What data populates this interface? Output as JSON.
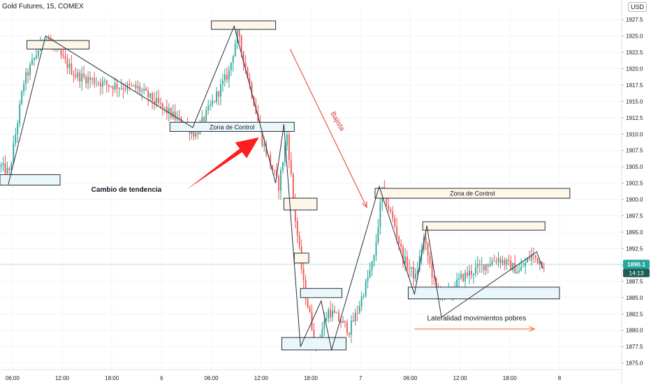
{
  "header": {
    "symbol": "Gold Futures, 15, COMEX",
    "currency": "USD"
  },
  "colors": {
    "up": "#26a69a",
    "down": "#ef5350",
    "zigzag": "#2a2e39",
    "box_border": "#2a2e39",
    "box_fill_beige": "#fdf6e9",
    "box_fill_blue": "#e9f7fb",
    "red_arrow": "#ff1e1e",
    "orange_arrow": "#f57c28",
    "price_line": "#26a69a",
    "price_tag_bg": "#26a69a",
    "time_tag_bg": "#1b5e55"
  },
  "chart_data": {
    "type": "candlestick",
    "title": "",
    "y_axis": {
      "side": "right",
      "range": [
        1874.0,
        1929.0
      ],
      "ticks": [
        "1875.0",
        "1877.5",
        "1880.0",
        "1882.5",
        "1885.0",
        "1887.5",
        "1890.0",
        "1892.5",
        "1895.0",
        "1897.5",
        "1900.0",
        "1902.5",
        "1905.0",
        "1907.5",
        "1910.0",
        "1912.5",
        "1915.0",
        "1917.5",
        "1920.0",
        "1922.5",
        "1925.0",
        "1927.5"
      ]
    },
    "x_axis": {
      "range": [
        0,
        300
      ],
      "ticks": [
        {
          "t": 6,
          "label": "06:00"
        },
        {
          "t": 30,
          "label": "12:00"
        },
        {
          "t": 54,
          "label": "18:00"
        },
        {
          "t": 78,
          "label": "6"
        },
        {
          "t": 102,
          "label": "06:00"
        },
        {
          "t": 126,
          "label": "12:00"
        },
        {
          "t": 150,
          "label": "18:00"
        },
        {
          "t": 174,
          "label": "7"
        },
        {
          "t": 198,
          "label": "06:00"
        },
        {
          "t": 222,
          "label": "12:00"
        },
        {
          "t": 246,
          "label": "18:00"
        },
        {
          "t": 270,
          "label": "8"
        }
      ]
    },
    "last_price": {
      "value": 1890.1,
      "label": "1890.1",
      "countdown": "14:13"
    },
    "candle_path": [
      [
        0,
        1905.0
      ],
      [
        4,
        1904.0
      ],
      [
        11,
        1918.0
      ],
      [
        21,
        1925.0
      ],
      [
        36,
        1919.0
      ],
      [
        52,
        1917.5
      ],
      [
        66,
        1917.0
      ],
      [
        82,
        1913.0
      ],
      [
        94,
        1910.0
      ],
      [
        110,
        1919.5
      ],
      [
        114,
        1925.5
      ],
      [
        122,
        1915.0
      ],
      [
        126,
        1909.0
      ],
      [
        134,
        1902.0
      ],
      [
        138,
        1910.0
      ],
      [
        142,
        1897.0
      ],
      [
        146,
        1887.0
      ],
      [
        152,
        1877.5
      ],
      [
        158,
        1883.0
      ],
      [
        162,
        1882.0
      ],
      [
        168,
        1880.0
      ],
      [
        172,
        1883.0
      ],
      [
        176,
        1887.0
      ],
      [
        180,
        1891.0
      ],
      [
        184,
        1901.5
      ],
      [
        190,
        1896.0
      ],
      [
        194,
        1891.0
      ],
      [
        200,
        1888.0
      ],
      [
        204,
        1894.0
      ],
      [
        210,
        1886.0
      ],
      [
        216,
        1885.5
      ],
      [
        222,
        1888.0
      ],
      [
        230,
        1889.5
      ],
      [
        240,
        1891.0
      ],
      [
        250,
        1889.0
      ],
      [
        256,
        1891.5
      ],
      [
        262,
        1890.1
      ]
    ],
    "zigzag": [
      [
        4,
        1902.3
      ],
      [
        22,
        1925.0
      ],
      [
        93,
        1911.0
      ],
      [
        113,
        1926.5
      ],
      [
        133,
        1902.5
      ],
      [
        137,
        1911.5
      ],
      [
        145,
        1877.5
      ],
      [
        155,
        1884.5
      ],
      [
        160,
        1877.0
      ],
      [
        183,
        1902.0
      ],
      [
        200,
        1885.5
      ],
      [
        206,
        1896.0
      ],
      [
        213,
        1882.0
      ],
      [
        259,
        1892.0
      ],
      [
        262,
        1889.5
      ]
    ],
    "boxes": [
      {
        "t0": 0,
        "t1": 29,
        "p_top": 1903.8,
        "p_bot": 1902.2,
        "fill": "blue",
        "label": ""
      },
      {
        "t0": 13,
        "t1": 43,
        "p_top": 1924.3,
        "p_bot": 1923.0,
        "fill": "beige",
        "label": ""
      },
      {
        "t0": 102,
        "t1": 133,
        "p_top": 1927.3,
        "p_bot": 1926.0,
        "fill": "beige",
        "label": ""
      },
      {
        "t0": 82,
        "t1": 142,
        "p_top": 1911.8,
        "p_bot": 1910.4,
        "fill": "blue",
        "label": "Zona de Control"
      },
      {
        "t0": 137,
        "t1": 153,
        "p_top": 1900.2,
        "p_bot": 1898.4,
        "fill": "beige",
        "label": ""
      },
      {
        "t0": 142,
        "t1": 149,
        "p_top": 1891.8,
        "p_bot": 1890.3,
        "fill": "beige",
        "label": ""
      },
      {
        "t0": 145,
        "t1": 165,
        "p_top": 1886.4,
        "p_bot": 1885.0,
        "fill": "blue",
        "label": ""
      },
      {
        "t0": 136,
        "t1": 167,
        "p_top": 1878.9,
        "p_bot": 1877.0,
        "fill": "blue",
        "label": ""
      },
      {
        "t0": 181,
        "t1": 275,
        "p_top": 1901.7,
        "p_bot": 1900.2,
        "fill": "beige",
        "label": "Zona de Control"
      },
      {
        "t0": 204,
        "t1": 263,
        "p_top": 1896.6,
        "p_bot": 1895.3,
        "fill": "beige",
        "label": ""
      },
      {
        "t0": 197,
        "t1": 270,
        "p_top": 1886.6,
        "p_bot": 1884.8,
        "fill": "blue",
        "label": ""
      }
    ],
    "annotations": [
      {
        "text": "Cambio de tendencia",
        "t": 61,
        "p": 1901.2,
        "bold": true,
        "rotate": 0,
        "color": "#131722"
      },
      {
        "text": "Bajista",
        "t": 162,
        "p": 1911.8,
        "bold": false,
        "rotate": 60,
        "color": "#d32f2f"
      },
      {
        "text": "Lateralidad movimientos pobres",
        "t": 230,
        "p": 1881.5,
        "bold": false,
        "rotate": 0,
        "color": "#131722"
      }
    ],
    "arrows": [
      {
        "kind": "big",
        "from": [
          90,
          1901.5
        ],
        "to": [
          125,
          1909.5
        ],
        "color": "red_arrow"
      },
      {
        "kind": "line",
        "from": [
          140,
          1923.0
        ],
        "to": [
          177,
          1898.8
        ],
        "color": "down"
      },
      {
        "kind": "line",
        "from": [
          200,
          1880.2
        ],
        "to": [
          258,
          1880.2
        ],
        "color": "orange_arrow"
      }
    ]
  }
}
